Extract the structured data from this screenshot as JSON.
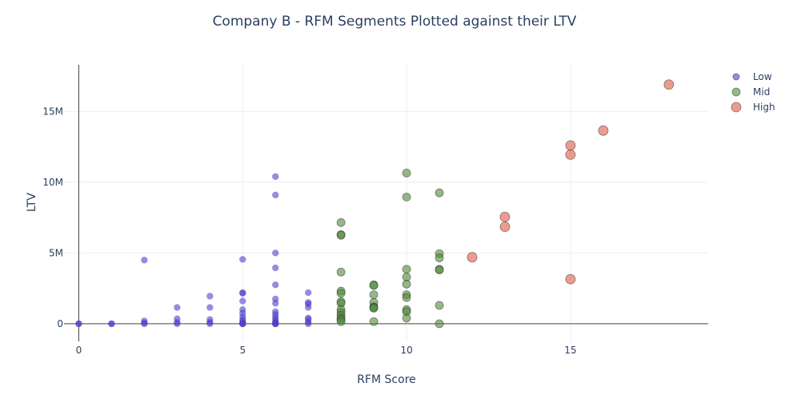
{
  "chart_data": {
    "type": "scatter",
    "title": "Company B - RFM Segments Plotted against their LTV",
    "xlabel": "RFM Score",
    "ylabel": "LTV",
    "xlim": [
      -0.45,
      19.2
    ],
    "ylim": [
      -1250000,
      18300000
    ],
    "x_ticks": [
      0,
      5,
      10,
      15
    ],
    "x_tick_labels": [
      "0",
      "5",
      "10",
      "15"
    ],
    "y_ticks": [
      0,
      5000000,
      10000000,
      15000000
    ],
    "y_tick_labels": [
      "0",
      "5M",
      "10M",
      "15M"
    ],
    "grid": true,
    "legend": "top-right",
    "series": [
      {
        "name": "Low",
        "color": "#4f3fd6",
        "x": [
          0,
          0,
          1,
          1,
          2,
          2,
          2,
          2,
          3,
          3,
          3,
          3,
          4,
          4,
          4,
          4,
          4,
          5,
          5,
          5,
          5,
          5,
          5,
          5,
          5,
          5,
          5,
          5,
          5,
          5,
          6,
          6,
          6,
          6,
          6,
          6,
          6,
          6,
          6,
          6,
          6,
          6,
          6,
          6,
          6,
          6,
          7,
          7,
          7,
          7,
          7,
          7,
          7,
          7
        ],
        "y": [
          0,
          0,
          0,
          0,
          4500000,
          200000,
          50000,
          0,
          1150000,
          350000,
          100000,
          0,
          1950000,
          1150000,
          300000,
          100000,
          0,
          4550000,
          2200000,
          2150000,
          1600000,
          1000000,
          750000,
          500000,
          300000,
          150000,
          50000,
          0,
          0,
          0,
          10400000,
          9100000,
          5000000,
          3950000,
          2750000,
          1750000,
          1450000,
          850000,
          650000,
          450000,
          300000,
          150000,
          50000,
          0,
          0,
          0,
          2200000,
          1500000,
          1400000,
          1150000,
          400000,
          300000,
          100000,
          0
        ]
      },
      {
        "name": "Mid",
        "color": "#4e8a36",
        "x": [
          8,
          8,
          8,
          8,
          8,
          8,
          8,
          8,
          8,
          8,
          8,
          8,
          8,
          8,
          9,
          9,
          9,
          9,
          9,
          9,
          9,
          9,
          10,
          10,
          10,
          10,
          10,
          10,
          10,
          10,
          10,
          10,
          11,
          11,
          11,
          11,
          11,
          11,
          11
        ],
        "y": [
          7150000,
          6300000,
          6250000,
          3650000,
          2300000,
          2150000,
          1550000,
          1450000,
          1000000,
          800000,
          600000,
          400000,
          300000,
          150000,
          2750000,
          2700000,
          2050000,
          1500000,
          1200000,
          1150000,
          1100000,
          150000,
          10650000,
          8950000,
          3850000,
          3300000,
          2800000,
          2050000,
          1850000,
          1000000,
          850000,
          400000,
          9250000,
          4950000,
          4650000,
          3850000,
          3800000,
          1300000,
          0
        ]
      },
      {
        "name": "High",
        "color": "#e05a44",
        "x": [
          12,
          13,
          13,
          15,
          15,
          15,
          16,
          18
        ],
        "y": [
          4700000,
          7550000,
          6850000,
          12600000,
          11950000,
          3150000,
          13650000,
          16900000
        ]
      }
    ]
  }
}
